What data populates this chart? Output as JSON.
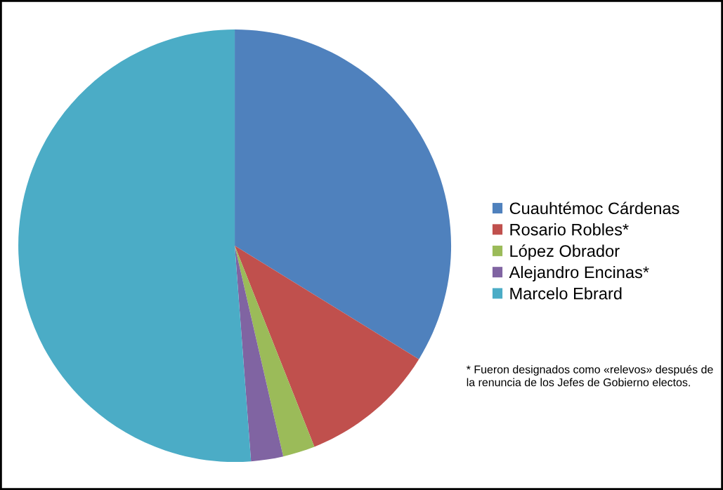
{
  "chart_data": {
    "type": "pie",
    "categories": [
      "Cuauhtémoc Cárdenas",
      "Rosario Robles*",
      "López Obrador",
      "Alejandro Encinas*",
      "Marcelo Ebrard"
    ],
    "values": [
      33.8,
      10.2,
      2.4,
      2.4,
      51.2
    ],
    "colors": [
      "#4f81bd",
      "#c0504d",
      "#9bbb59",
      "#8064a2",
      "#4bacc6"
    ],
    "legend": "right",
    "annotations": [
      "* Fueron designados como «relevos» después de la renuncia de los Jefes de Gobierno electos."
    ]
  }
}
